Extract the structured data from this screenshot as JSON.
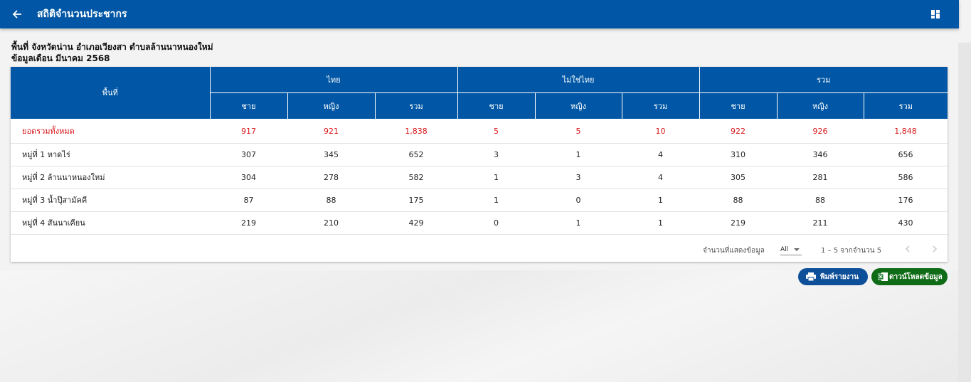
{
  "header": {
    "title": "สถิติจำนวนประชากร"
  },
  "info": {
    "area_line": "พื้นที่ จังหวัดน่าน อำเภอเวียงสา ตำบลล้านนาหนองใหม่",
    "month_line": "ข้อมูลเดือน มีนาคม 2568"
  },
  "table": {
    "area_header": "พื้นที่",
    "groups": [
      "ไทย",
      "ไม่ใช่ไทย",
      "รวม"
    ],
    "subheaders": [
      "ชาย",
      "หญิง",
      "รวม"
    ],
    "rows": [
      {
        "area": "ยอดรวมทั้งหมด",
        "values": [
          "917",
          "921",
          "1,838",
          "5",
          "5",
          "10",
          "922",
          "926",
          "1,848"
        ]
      },
      {
        "area": "หมู่ที่ 1 หาดไร่",
        "values": [
          "307",
          "345",
          "652",
          "3",
          "1",
          "4",
          "310",
          "346",
          "656"
        ]
      },
      {
        "area": "หมู่ที่ 2 ล้านนาหนองใหม่",
        "values": [
          "304",
          "278",
          "582",
          "1",
          "3",
          "4",
          "305",
          "281",
          "586"
        ]
      },
      {
        "area": "หมู่ที่ 3 น้ำปุ๊สามัคคี",
        "values": [
          "87",
          "88",
          "175",
          "1",
          "0",
          "1",
          "88",
          "88",
          "176"
        ]
      },
      {
        "area": "หมู่ที่ 4 สันนาเคียน",
        "values": [
          "219",
          "210",
          "429",
          "0",
          "1",
          "1",
          "219",
          "211",
          "430"
        ]
      }
    ]
  },
  "pagination": {
    "rows_label": "จำนวนที่แสดงข้อมูล",
    "rows_value": "All",
    "range_text": "1 – 5 จากจำนวน 5"
  },
  "actions": {
    "print_label": "พิมพ์รายงาน",
    "download_label": "ดาวน์โหลดข้อมูล"
  },
  "colors": {
    "primary": "#0157a5",
    "total_text": "#d8161b",
    "download": "#0f6b16"
  },
  "icons": {
    "back": "arrow-left-icon",
    "grid": "dashboard-icon",
    "print": "printer-icon",
    "excel": "excel-icon"
  }
}
